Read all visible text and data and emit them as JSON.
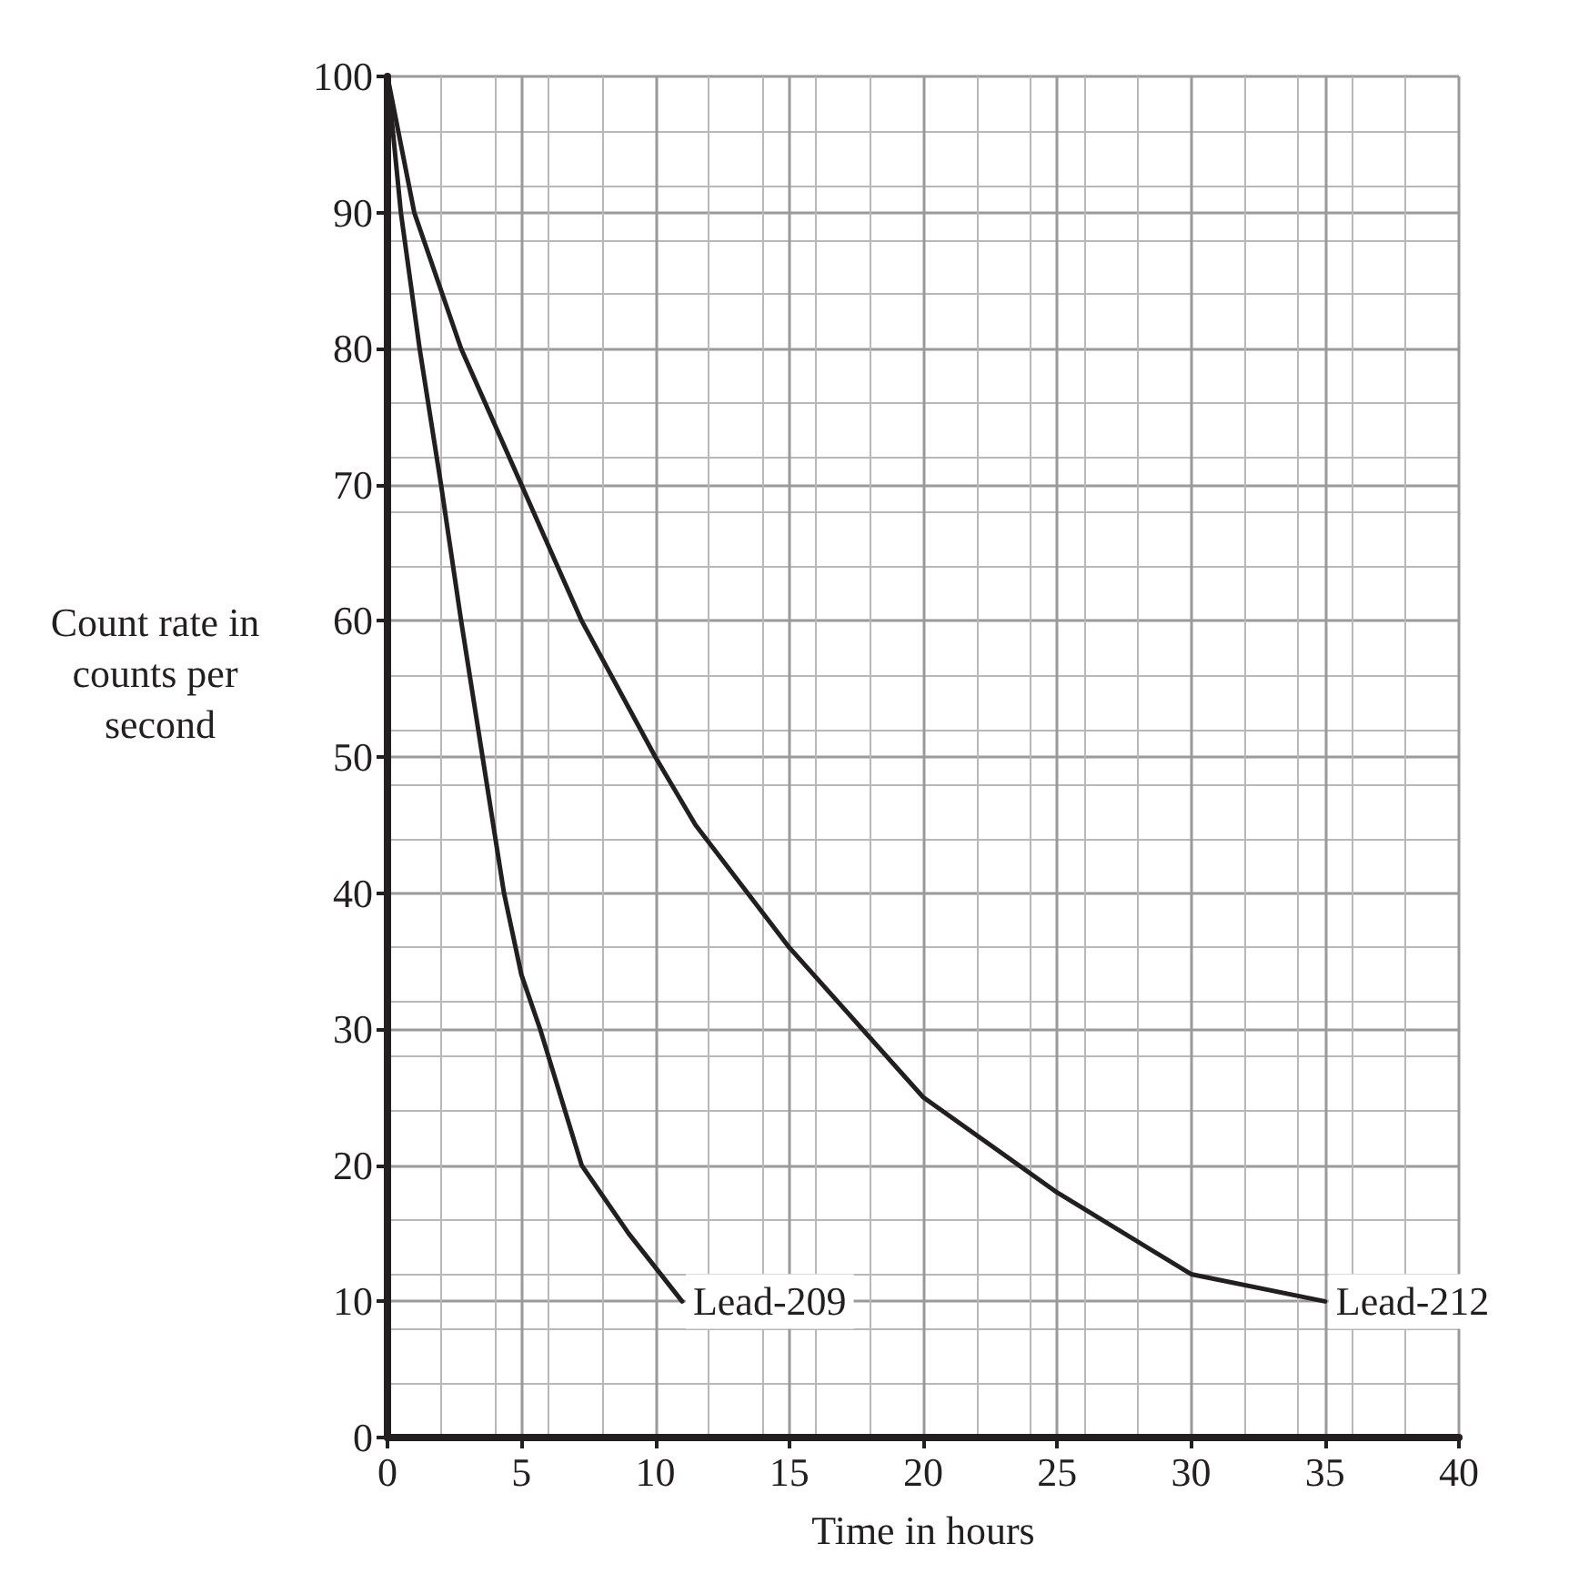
{
  "chart_data": {
    "type": "line",
    "xlabel": "Time in hours",
    "ylabel": "Count rate in counts per second",
    "xlim": [
      0,
      40
    ],
    "xticks": [
      0,
      5,
      10,
      15,
      20,
      25,
      30,
      35,
      40
    ],
    "ylim": [
      0,
      100
    ],
    "yticks": [
      0,
      10,
      20,
      30,
      40,
      50,
      60,
      70,
      80,
      90,
      100
    ],
    "grid": true,
    "legend": false,
    "marker": "none",
    "line_style": "solid",
    "series": [
      {
        "name": "Lead-209",
        "color": "#231f20",
        "x": [
          0,
          0.5,
          1.2,
          2,
          2.75,
          3.55,
          4.35,
          5,
          5.7,
          7.25,
          9,
          11
        ],
        "values": [
          100,
          90,
          80,
          70,
          60,
          50,
          40,
          34,
          30,
          20,
          15,
          10
        ]
      },
      {
        "name": "Lead-212",
        "color": "#231f20",
        "x": [
          0,
          1,
          2.75,
          5,
          7.25,
          10,
          11.5,
          15,
          20,
          25,
          30,
          35
        ],
        "values": [
          100,
          90,
          80,
          70,
          60,
          50,
          45,
          36,
          25,
          18,
          12,
          10
        ]
      }
    ]
  }
}
